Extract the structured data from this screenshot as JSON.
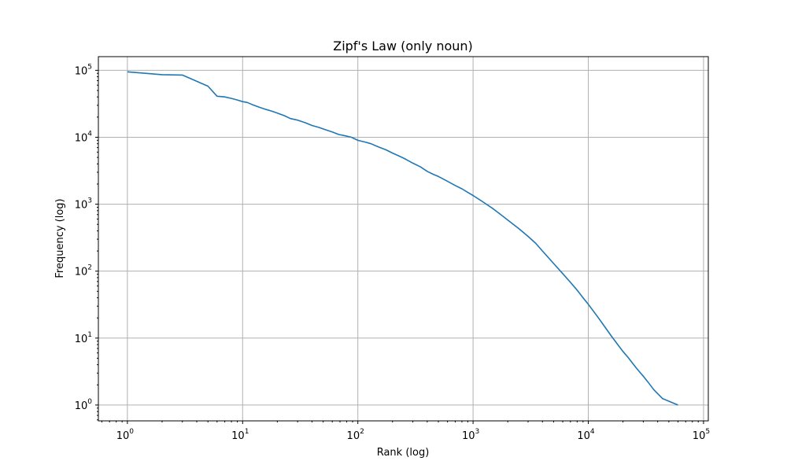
{
  "chart_data": {
    "type": "line",
    "title": "Zipf's Law (only noun)",
    "xlabel": "Rank (log)",
    "ylabel": "Frequency (log)",
    "x_scale": "log",
    "y_scale": "log",
    "xlim": [
      0.56,
      110000
    ],
    "ylim": [
      0.58,
      160000
    ],
    "grid": true,
    "x_ticks": [
      {
        "base": "10",
        "exp": "0",
        "value": 1
      },
      {
        "base": "10",
        "exp": "1",
        "value": 10
      },
      {
        "base": "10",
        "exp": "2",
        "value": 100
      },
      {
        "base": "10",
        "exp": "3",
        "value": 1000
      },
      {
        "base": "10",
        "exp": "4",
        "value": 10000
      },
      {
        "base": "10",
        "exp": "5",
        "value": 100000
      }
    ],
    "y_ticks": [
      {
        "base": "10",
        "exp": "0",
        "value": 1
      },
      {
        "base": "10",
        "exp": "1",
        "value": 10
      },
      {
        "base": "10",
        "exp": "2",
        "value": 100
      },
      {
        "base": "10",
        "exp": "3",
        "value": 1000
      },
      {
        "base": "10",
        "exp": "4",
        "value": 10000
      },
      {
        "base": "10",
        "exp": "5",
        "value": 100000
      }
    ],
    "series": [
      {
        "color": "#1f77b4",
        "x": [
          1,
          2,
          3,
          5,
          6,
          7,
          8,
          9,
          10,
          11,
          12,
          14,
          16,
          18,
          20,
          23,
          26,
          30,
          35,
          40,
          46,
          52,
          60,
          68,
          78,
          88,
          100,
          115,
          130,
          150,
          175,
          200,
          230,
          260,
          300,
          350,
          400,
          450,
          500,
          600,
          700,
          800,
          900,
          1000,
          1200,
          1500,
          1700,
          2000,
          2500,
          3000,
          3500,
          4000,
          5000,
          6000,
          7000,
          8000,
          9000,
          10000,
          12000,
          14000,
          16000,
          18000,
          20000,
          22000,
          24000,
          26000,
          28000,
          30000,
          33000,
          37000,
          44000,
          60000
        ],
        "y": [
          95000,
          86000,
          85000,
          58000,
          41000,
          40000,
          38000,
          36000,
          34000,
          33000,
          31000,
          28000,
          26000,
          24500,
          23000,
          21000,
          19000,
          18000,
          16500,
          15000,
          14000,
          13000,
          12000,
          11000,
          10500,
          10000,
          9000,
          8500,
          8000,
          7200,
          6500,
          5800,
          5200,
          4700,
          4100,
          3600,
          3100,
          2800,
          2600,
          2200,
          1900,
          1700,
          1500,
          1350,
          1100,
          850,
          720,
          580,
          430,
          330,
          260,
          200,
          130,
          92,
          68,
          52,
          40,
          32,
          21,
          14.5,
          10.5,
          8,
          6.3,
          5.2,
          4.3,
          3.6,
          3.1,
          2.7,
          2.2,
          1.7,
          1.25,
          1
        ]
      }
    ]
  }
}
